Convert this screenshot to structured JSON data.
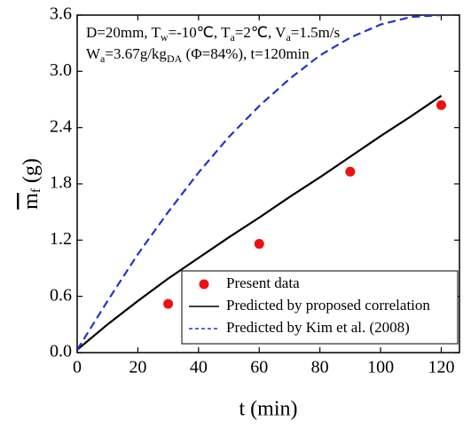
{
  "chart_data": {
    "type": "line",
    "annotation_lines": [
      [
        "D=20mm, T",
        "w",
        "=-10℃, T",
        "a",
        "=2℃, V",
        "a",
        "=1.5m/s"
      ],
      [
        "W",
        "a",
        "=3.67g/kg",
        "DA",
        " (Φ=84%), t=120min"
      ]
    ],
    "x_label": "t (min)",
    "y_label": [
      "m",
      "f",
      " (g)"
    ],
    "xlim": [
      0,
      126
    ],
    "ylim": [
      0,
      3.6
    ],
    "xticks": [
      0,
      20,
      40,
      60,
      80,
      100,
      120
    ],
    "yticks": [
      {
        "value": 0,
        "label": "0.0"
      },
      0.6,
      1.2,
      1.8,
      2.4,
      {
        "value": 3,
        "label": "3.0"
      },
      3.6
    ],
    "legend_position": "lower right",
    "series": [
      {
        "name": "Present data",
        "style": "markers",
        "color": "#ee1111",
        "x": [
          30,
          60,
          90,
          120
        ],
        "values": [
          0.52,
          1.16,
          1.93,
          2.64
        ]
      },
      {
        "name": "Predicted by proposed correlation",
        "style": "solid",
        "color": "#000000",
        "x": [
          0,
          10,
          20,
          30,
          40,
          50,
          60,
          70,
          80,
          90,
          100,
          110,
          120
        ],
        "values": [
          0.03,
          0.3,
          0.55,
          0.79,
          1.01,
          1.23,
          1.44,
          1.66,
          1.87,
          2.09,
          2.31,
          2.52,
          2.74
        ]
      },
      {
        "name": "Predicted by Kim et al. (2008)",
        "style": "dashed",
        "color": "#2233cc",
        "x": [
          0,
          10,
          20,
          30,
          40,
          50,
          60,
          70,
          80,
          90,
          100,
          110,
          120
        ],
        "values": [
          0.03,
          0.55,
          1.05,
          1.5,
          1.92,
          2.3,
          2.63,
          2.92,
          3.17,
          3.36,
          3.5,
          3.58,
          3.6
        ]
      }
    ]
  }
}
